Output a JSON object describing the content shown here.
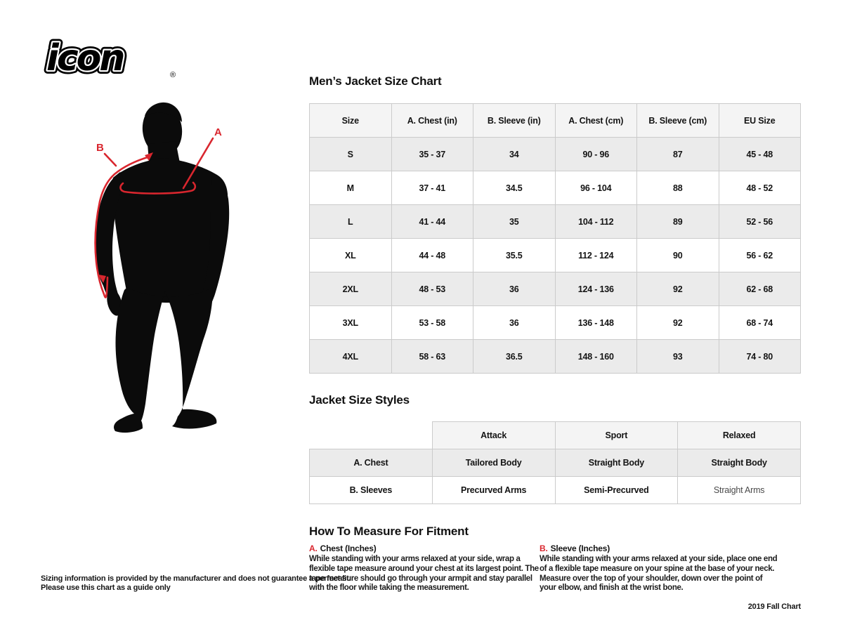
{
  "brand": {
    "logo_text": "icon",
    "registered_mark": "®"
  },
  "figure": {
    "label_a": "A",
    "label_b": "B",
    "line_color": "#d9262e",
    "silhouette_color": "#0b0b0b"
  },
  "size_chart": {
    "title": "Men’s Jacket Size Chart",
    "columns": [
      "Size",
      "A. Chest (in)",
      "B. Sleeve (in)",
      "A. Chest (cm)",
      "B. Sleeve (cm)",
      "EU Size"
    ],
    "rows": [
      [
        "S",
        "35 - 37",
        "34",
        "90 - 96",
        "87",
        "45 - 48"
      ],
      [
        "M",
        "37 - 41",
        "34.5",
        "96 - 104",
        "88",
        "48 - 52"
      ],
      [
        "L",
        "41 - 44",
        "35",
        "104 - 112",
        "89",
        "52 - 56"
      ],
      [
        "XL",
        "44 - 48",
        "35.5",
        "112 - 124",
        "90",
        "56 - 62"
      ],
      [
        "2XL",
        "48 - 53",
        "36",
        "124 - 136",
        "92",
        "62 - 68"
      ],
      [
        "3XL",
        "53 - 58",
        "36",
        "136 - 148",
        "92",
        "68 - 74"
      ],
      [
        "4XL",
        "58 - 63",
        "36.5",
        "148 - 160",
        "93",
        "74 - 80"
      ]
    ]
  },
  "style_chart": {
    "title": "Jacket Size Styles",
    "columns": [
      "",
      "Attack",
      "Sport",
      "Relaxed"
    ],
    "rows": [
      [
        "A. Chest",
        "Tailored Body",
        "Straight Body",
        "Straight Body"
      ],
      [
        "B. Sleeves",
        "Precurved Arms",
        "Semi-Precurved",
        "Straight Arms"
      ]
    ]
  },
  "how_to_measure": {
    "title": "How To Measure For Fitment",
    "sections": [
      {
        "label": "A.",
        "heading": "Chest (Inches)",
        "body": "While standing with your arms relaxed at your side, wrap a flexible tape measure around your chest at its largest point. The tape measure should go through your armpit and stay parallel with the floor while taking the measurement."
      },
      {
        "label": "B.",
        "heading": "Sleeve (Inches)",
        "body": "While standing with your arms relaxed at your side, place one end of a flexible tape measure on your spine at the base of your neck. Measure over the top of your shoulder, down over the point of your elbow, and finish at the wrist bone."
      }
    ]
  },
  "footer": {
    "disclaimer_line1": "Sizing information is provided by the manufacturer and does not guarantee a perfect fit.",
    "disclaimer_line2": "Please use this chart as a guide only",
    "chart_version": "2019 Fall Chart"
  },
  "colors": {
    "accent_red": "#d9262e",
    "table_header_bg": "#f4f4f4",
    "table_alt_row_bg": "#ebebeb",
    "table_border": "#cbcbcb"
  }
}
